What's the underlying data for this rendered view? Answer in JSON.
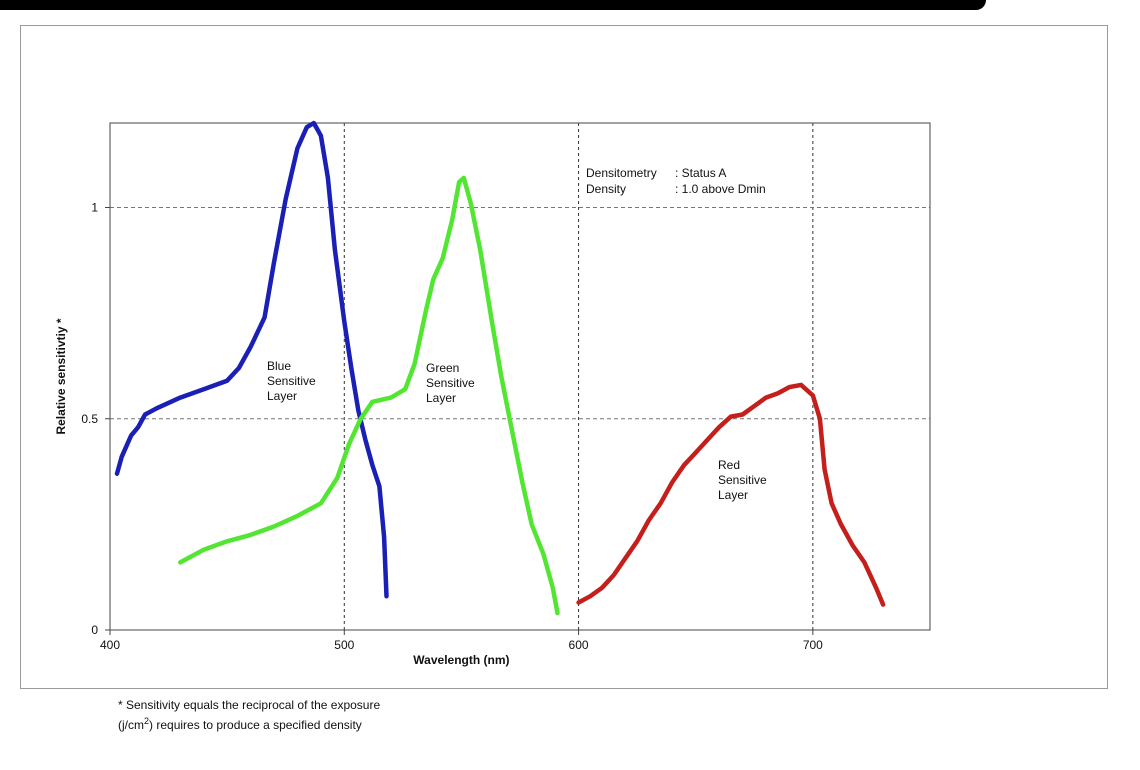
{
  "chart_data": {
    "type": "line",
    "xlabel": "Wavelength (nm)",
    "ylabel": "Relative sensitivtiy *",
    "xlim": [
      400,
      750
    ],
    "ylim": [
      0,
      1.2
    ],
    "x_ticks": [
      400,
      500,
      600,
      700
    ],
    "y_ticks": [
      0,
      0.5,
      1
    ],
    "y_tick_labels": [
      "0",
      "0.5",
      "1"
    ],
    "grid": "dashed, at x=500, 600, 700 and y=0.5, 1",
    "series": [
      {
        "name": "Blue Sensitive Layer",
        "label_lines": [
          "Blue",
          "Sensitive",
          "Layer"
        ],
        "color": "#1a1fb5",
        "x": [
          403,
          405,
          409,
          412,
          415,
          420,
          430,
          440,
          450,
          455,
          460,
          466,
          470,
          475,
          480,
          484,
          487,
          490,
          493,
          496,
          500,
          503,
          506,
          509,
          512,
          515,
          517,
          518
        ],
        "y": [
          0.37,
          0.41,
          0.46,
          0.48,
          0.51,
          0.525,
          0.55,
          0.57,
          0.59,
          0.62,
          0.67,
          0.74,
          0.87,
          1.02,
          1.14,
          1.19,
          1.2,
          1.17,
          1.07,
          0.9,
          0.73,
          0.62,
          0.52,
          0.45,
          0.39,
          0.34,
          0.22,
          0.08
        ]
      },
      {
        "name": "Green Sensitive Layer",
        "label_lines": [
          "Green",
          "Sensitive",
          "Layer"
        ],
        "color": "#52e632",
        "x": [
          430,
          440,
          450,
          460,
          470,
          480,
          490,
          497,
          502,
          507,
          512,
          520,
          526,
          530,
          535,
          538,
          542,
          546,
          549,
          551,
          554,
          558,
          563,
          567,
          572,
          576,
          580,
          585,
          589,
          591
        ],
        "y": [
          0.16,
          0.19,
          0.21,
          0.225,
          0.245,
          0.27,
          0.3,
          0.36,
          0.44,
          0.5,
          0.54,
          0.55,
          0.57,
          0.63,
          0.76,
          0.83,
          0.88,
          0.97,
          1.06,
          1.07,
          1.01,
          0.9,
          0.73,
          0.6,
          0.46,
          0.35,
          0.25,
          0.18,
          0.1,
          0.04
        ]
      },
      {
        "name": "Red Sensitive Layer",
        "label_lines": [
          "Red",
          "Sensitive",
          "Layer"
        ],
        "color": "#c41f1a",
        "x": [
          600,
          605,
          610,
          615,
          620,
          625,
          630,
          635,
          640,
          645,
          650,
          655,
          660,
          665,
          670,
          675,
          680,
          685,
          690,
          695,
          700,
          703,
          705,
          708,
          712,
          717,
          722,
          727,
          730
        ],
        "y": [
          0.065,
          0.08,
          0.1,
          0.13,
          0.17,
          0.21,
          0.26,
          0.3,
          0.35,
          0.39,
          0.42,
          0.45,
          0.48,
          0.505,
          0.51,
          0.53,
          0.55,
          0.56,
          0.575,
          0.58,
          0.555,
          0.5,
          0.38,
          0.3,
          0.25,
          0.2,
          0.16,
          0.1,
          0.06
        ]
      }
    ],
    "annotations": {
      "densitometry_key": "Densitometry",
      "densitometry_value": ": Status A",
      "density_key": "Density",
      "density_value": ": 1.0 above  Dmin"
    }
  },
  "footnote": {
    "line1": "* Sensitivity equals the reciprocal of the exposure",
    "line2_prefix": "(j/cm",
    "line2_sup": "2",
    "line2_suffix": ") requires to produce a specified density"
  }
}
